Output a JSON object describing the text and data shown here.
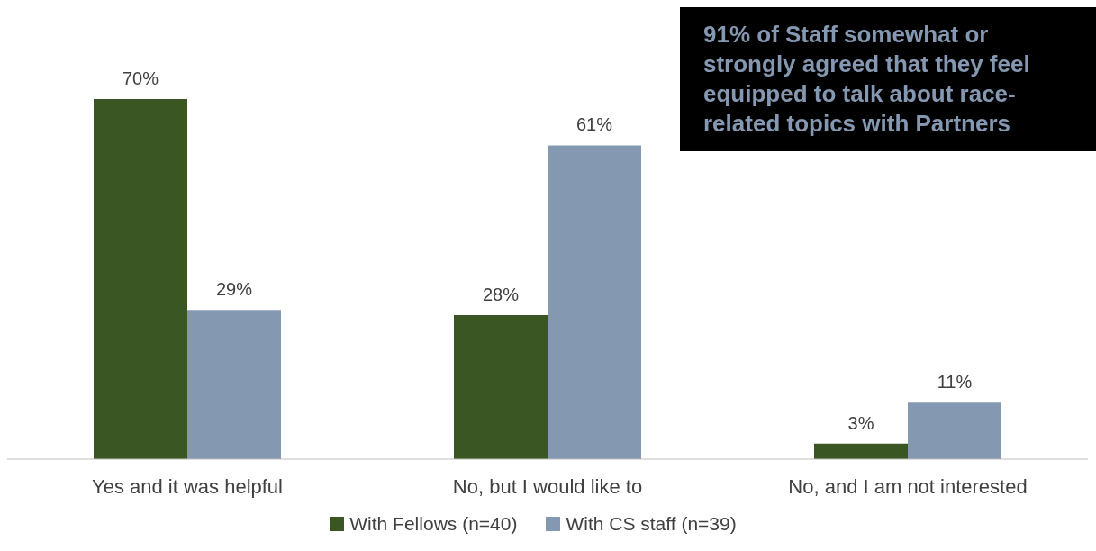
{
  "chart_data": {
    "type": "bar",
    "categories": [
      "Yes and it was helpful",
      "No, but I would like to",
      "No, and I am not interested"
    ],
    "series": [
      {
        "name": "With Fellows (n=40)",
        "color": "#3a5723",
        "values": [
          70,
          28,
          3
        ],
        "value_labels": [
          "70%",
          "28%",
          "3%"
        ]
      },
      {
        "name": "With CS staff (n=39)",
        "color": "#8598b2",
        "values": [
          29,
          61,
          11
        ],
        "value_labels": [
          "29%",
          "61%",
          "11%"
        ]
      }
    ],
    "legend": "bottom",
    "annotations": [
      "91% of Staff somewhat or strongly agreed that they feel equipped to talk about race-related topics with Partners"
    ]
  }
}
